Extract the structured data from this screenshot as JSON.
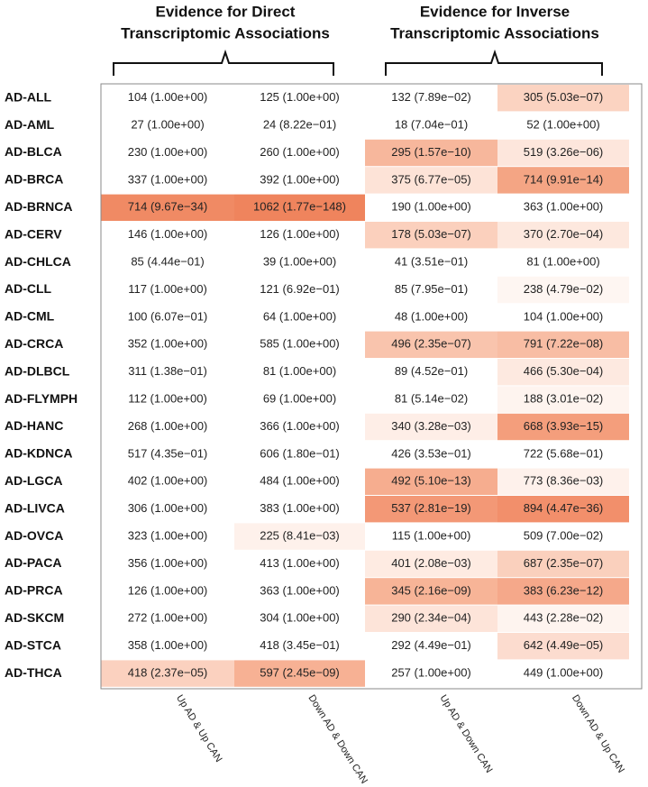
{
  "groups": [
    {
      "title_lines": [
        "Evidence for Direct",
        "Transcriptomic  Associations"
      ]
    },
    {
      "title_lines": [
        "Evidence for Inverse",
        "Transcriptomic  Associations"
      ]
    }
  ],
  "columns": [
    "Up AD & Up CAN",
    "Down AD & Down CAN",
    "Up AD & Down CAN",
    "Down AD & Up CAN"
  ],
  "rows": [
    {
      "label": "AD-ALL",
      "cells": [
        "104 (1.00e+00)",
        "125 (1.00e+00)",
        "132 (7.89e−02)",
        "305 (5.03e−07)"
      ],
      "colors": [
        "#ffffff",
        "#ffffff",
        "#ffffff",
        "#fbd3c1"
      ]
    },
    {
      "label": "AD-AML",
      "cells": [
        "27 (1.00e+00)",
        "24 (8.22e−01)",
        "18 (7.04e−01)",
        "52 (1.00e+00)"
      ],
      "colors": [
        "#ffffff",
        "#ffffff",
        "#ffffff",
        "#ffffff"
      ]
    },
    {
      "label": "AD-BLCA",
      "cells": [
        "230 (1.00e+00)",
        "260 (1.00e+00)",
        "295 (1.57e−10)",
        "519 (3.26e−06)"
      ],
      "colors": [
        "#ffffff",
        "#ffffff",
        "#f7b79c",
        "#fde6dc"
      ]
    },
    {
      "label": "AD-BRCA",
      "cells": [
        "337 (1.00e+00)",
        "392 (1.00e+00)",
        "375 (6.77e−05)",
        "714 (9.91e−14)"
      ],
      "colors": [
        "#ffffff",
        "#ffffff",
        "#fde3d7",
        "#f4a584"
      ]
    },
    {
      "label": "AD-BRNCA",
      "cells": [
        "714 (9.67e−34)",
        "1062 (1.77e−148)",
        "190 (1.00e+00)",
        "363 (1.00e+00)"
      ],
      "colors": [
        "#f08a64",
        "#ef845d",
        "#ffffff",
        "#ffffff"
      ]
    },
    {
      "label": "AD-CERV",
      "cells": [
        "146 (1.00e+00)",
        "126 (1.00e+00)",
        "178 (5.03e−07)",
        "370 (2.70e−04)"
      ],
      "colors": [
        "#ffffff",
        "#ffffff",
        "#fbd0bd",
        "#fde8de"
      ]
    },
    {
      "label": "AD-CHLCA",
      "cells": [
        "85 (4.44e−01)",
        "39 (1.00e+00)",
        "41 (3.51e−01)",
        "81 (1.00e+00)"
      ],
      "colors": [
        "#ffffff",
        "#ffffff",
        "#ffffff",
        "#ffffff"
      ]
    },
    {
      "label": "AD-CLL",
      "cells": [
        "117 (1.00e+00)",
        "121 (6.92e−01)",
        "85 (7.95e−01)",
        "238 (4.79e−02)"
      ],
      "colors": [
        "#ffffff",
        "#ffffff",
        "#ffffff",
        "#fef6f2"
      ]
    },
    {
      "label": "AD-CML",
      "cells": [
        "100 (6.07e−01)",
        "64 (1.00e+00)",
        "48 (1.00e+00)",
        "104 (1.00e+00)"
      ],
      "colors": [
        "#ffffff",
        "#ffffff",
        "#ffffff",
        "#ffffff"
      ]
    },
    {
      "label": "AD-CRCA",
      "cells": [
        "352 (1.00e+00)",
        "585 (1.00e+00)",
        "496 (2.35e−07)",
        "791 (7.22e−08)"
      ],
      "colors": [
        "#ffffff",
        "#ffffff",
        "#f9c4ad",
        "#f8bda4"
      ]
    },
    {
      "label": "AD-DLBCL",
      "cells": [
        "311 (1.38e−01)",
        "81 (1.00e+00)",
        "89 (4.52e−01)",
        "466 (5.30e−04)"
      ],
      "colors": [
        "#ffffff",
        "#ffffff",
        "#ffffff",
        "#fde9e0"
      ]
    },
    {
      "label": "AD-FLYMPH",
      "cells": [
        "112 (1.00e+00)",
        "69 (1.00e+00)",
        "81 (5.14e−02)",
        "188 (3.01e−02)"
      ],
      "colors": [
        "#ffffff",
        "#ffffff",
        "#ffffff",
        "#fef4ef"
      ]
    },
    {
      "label": "AD-HANC",
      "cells": [
        "268 (1.00e+00)",
        "366 (1.00e+00)",
        "340 (3.28e−03)",
        "668 (3.93e−15)"
      ],
      "colors": [
        "#ffffff",
        "#ffffff",
        "#feeee7",
        "#f49e7c"
      ]
    },
    {
      "label": "AD-KDNCA",
      "cells": [
        "517 (4.35e−01)",
        "606 (1.80e−01)",
        "426 (3.53e−01)",
        "722 (5.68e−01)"
      ],
      "colors": [
        "#ffffff",
        "#ffffff",
        "#ffffff",
        "#ffffff"
      ]
    },
    {
      "label": "AD-LGCA",
      "cells": [
        "402 (1.00e+00)",
        "484 (1.00e+00)",
        "492 (5.10e−13)",
        "773 (8.36e−03)"
      ],
      "colors": [
        "#ffffff",
        "#ffffff",
        "#f6ad8f",
        "#fef1eb"
      ]
    },
    {
      "label": "AD-LIVCA",
      "cells": [
        "306 (1.00e+00)",
        "383 (1.00e+00)",
        "537 (2.81e−19)",
        "894 (4.47e−36)"
      ],
      "colors": [
        "#ffffff",
        "#ffffff",
        "#f39876",
        "#f28f6b"
      ]
    },
    {
      "label": "AD-OVCA",
      "cells": [
        "323 (1.00e+00)",
        "225 (8.41e−03)",
        "115 (1.00e+00)",
        "509 (7.00e−02)"
      ],
      "colors": [
        "#ffffff",
        "#fef1eb",
        "#ffffff",
        "#ffffff"
      ]
    },
    {
      "label": "AD-PACA",
      "cells": [
        "356 (1.00e+00)",
        "413 (1.00e+00)",
        "401 (2.08e−03)",
        "687 (2.35e−07)"
      ],
      "colors": [
        "#ffffff",
        "#ffffff",
        "#feebe2",
        "#fad0bd"
      ]
    },
    {
      "label": "AD-PRCA",
      "cells": [
        "126 (1.00e+00)",
        "363 (1.00e+00)",
        "345 (2.16e−09)",
        "383 (6.23e−12)"
      ],
      "colors": [
        "#ffffff",
        "#ffffff",
        "#f7b497",
        "#f5a88a"
      ]
    },
    {
      "label": "AD-SKCM",
      "cells": [
        "272 (1.00e+00)",
        "304 (1.00e+00)",
        "290 (2.34e−04)",
        "443 (2.28e−02)"
      ],
      "colors": [
        "#ffffff",
        "#ffffff",
        "#fde4d9",
        "#fef4ef"
      ]
    },
    {
      "label": "AD-STCA",
      "cells": [
        "358 (1.00e+00)",
        "418 (3.45e−01)",
        "292 (4.49e−01)",
        "642 (4.49e−05)"
      ],
      "colors": [
        "#ffffff",
        "#ffffff",
        "#ffffff",
        "#fcdccf"
      ]
    },
    {
      "label": "AD-THCA",
      "cells": [
        "418 (2.37e−05)",
        "597 (2.45e−09)",
        "257 (1.00e+00)",
        "449 (1.00e+00)"
      ],
      "colors": [
        "#fbd1bf",
        "#f7b194",
        "#ffffff",
        "#ffffff"
      ]
    }
  ]
}
